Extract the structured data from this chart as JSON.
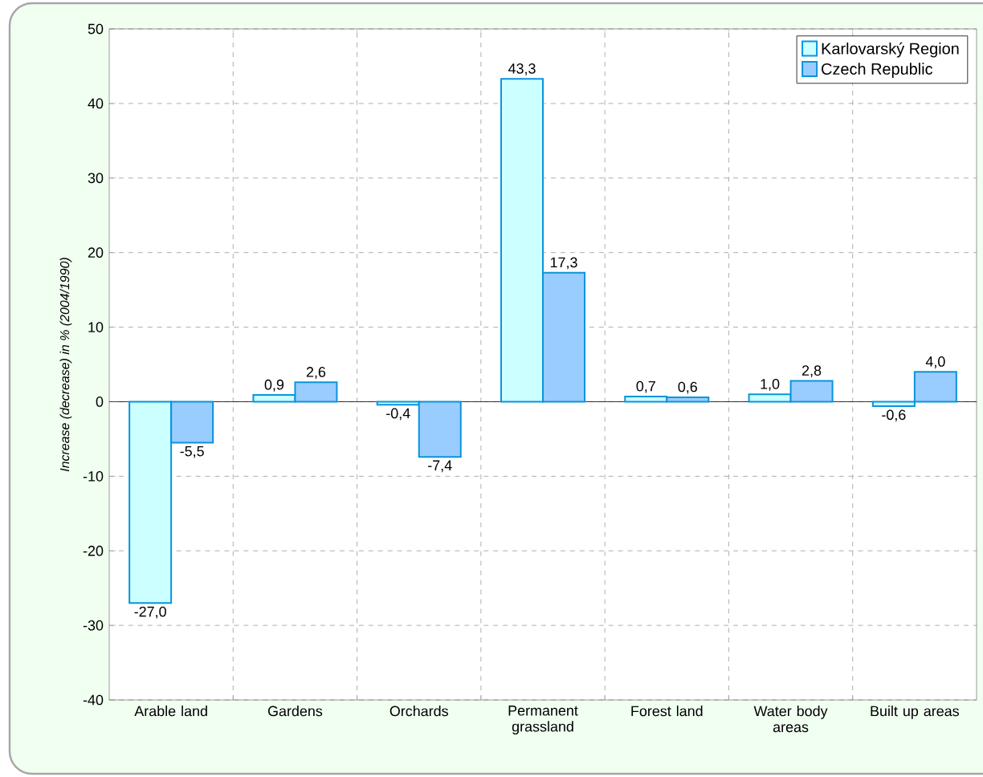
{
  "chart_data": {
    "type": "bar",
    "ylabel": "Increase (decrease) in  % (2004/1990)",
    "categories": [
      "Arable land",
      "Gardens",
      "Orchards",
      "Permanent grassland",
      "Forest land",
      "Water body areas",
      "Built up areas"
    ],
    "series": [
      {
        "name": "Karlovarský Region",
        "color": "#ccffff",
        "values": [
          -27.0,
          0.9,
          -0.4,
          43.3,
          0.7,
          1.0,
          -0.6
        ],
        "value_labels": [
          "-27,0",
          "0,9",
          "-0,4",
          "43,3",
          "0,7",
          "1,0",
          "-0,6"
        ]
      },
      {
        "name": "Czech Republic",
        "color": "#99ccff",
        "values": [
          -5.5,
          2.6,
          -7.4,
          17.3,
          0.6,
          2.8,
          4.0
        ],
        "value_labels": [
          "-5,5",
          "2,6",
          "-7,4",
          "17,3",
          "0,6",
          "2,8",
          "4,0"
        ]
      }
    ],
    "ylim": [
      -40,
      50
    ],
    "yticks": [
      -40,
      -30,
      -20,
      -10,
      0,
      10,
      20,
      30,
      40,
      50
    ],
    "grid": true,
    "legend": "top right"
  }
}
